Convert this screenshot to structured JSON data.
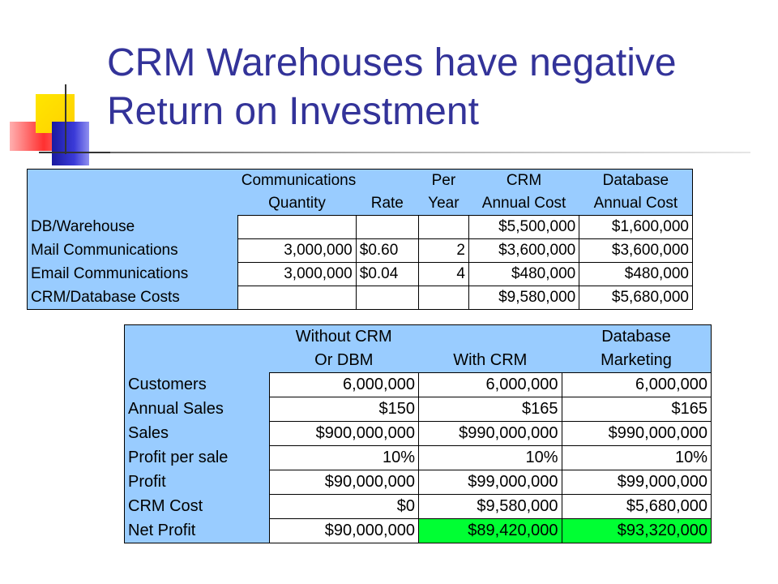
{
  "title": "CRM Warehouses have negative Return on Investment",
  "colors": {
    "title": "#333399",
    "table_bg": "#99ccff",
    "highlight": "#00ff33"
  },
  "table1": {
    "header_row1": [
      "",
      "Communications",
      "",
      "Per",
      "CRM",
      "Database"
    ],
    "header_row2": [
      "",
      "Quantity",
      "Rate",
      "Year",
      "Annual Cost",
      "Annual Cost"
    ],
    "rows": [
      {
        "label": "DB/Warehouse",
        "cells": [
          "",
          "",
          "",
          "$5,500,000",
          "$1,600,000"
        ]
      },
      {
        "label": "Mail Communications",
        "cells": [
          "3,000,000",
          "$0.60",
          "2",
          "$3,600,000",
          "$3,600,000"
        ]
      },
      {
        "label": "Email Communications",
        "cells": [
          "3,000,000",
          "$0.04",
          "4",
          "$480,000",
          "$480,000"
        ]
      },
      {
        "label": "CRM/Database Costs",
        "cells": [
          "",
          "",
          "",
          "$9,580,000",
          "$5,680,000"
        ]
      }
    ]
  },
  "table2": {
    "header_row1": [
      "",
      "Without CRM",
      "",
      "Database"
    ],
    "header_row2": [
      "",
      "Or DBM",
      "With CRM",
      "Marketing"
    ],
    "rows": [
      {
        "label": "Customers",
        "cells": [
          "6,000,000",
          "6,000,000",
          "6,000,000"
        ]
      },
      {
        "label": "Annual Sales",
        "cells": [
          "$150",
          "$165",
          "$165"
        ]
      },
      {
        "label": "Sales",
        "cells": [
          "$900,000,000",
          "$990,000,000",
          "$990,000,000"
        ]
      },
      {
        "label": "Profit per sale",
        "cells": [
          "10%",
          "10%",
          "10%"
        ]
      },
      {
        "label": "Profit",
        "cells": [
          "$90,000,000",
          "$99,000,000",
          "$99,000,000"
        ]
      },
      {
        "label": "CRM Cost",
        "cells": [
          "$0",
          "$9,580,000",
          "$5,680,000"
        ]
      },
      {
        "label": "Net Profit",
        "cells": [
          "$90,000,000",
          "$89,420,000",
          "$93,320,000"
        ]
      }
    ]
  }
}
